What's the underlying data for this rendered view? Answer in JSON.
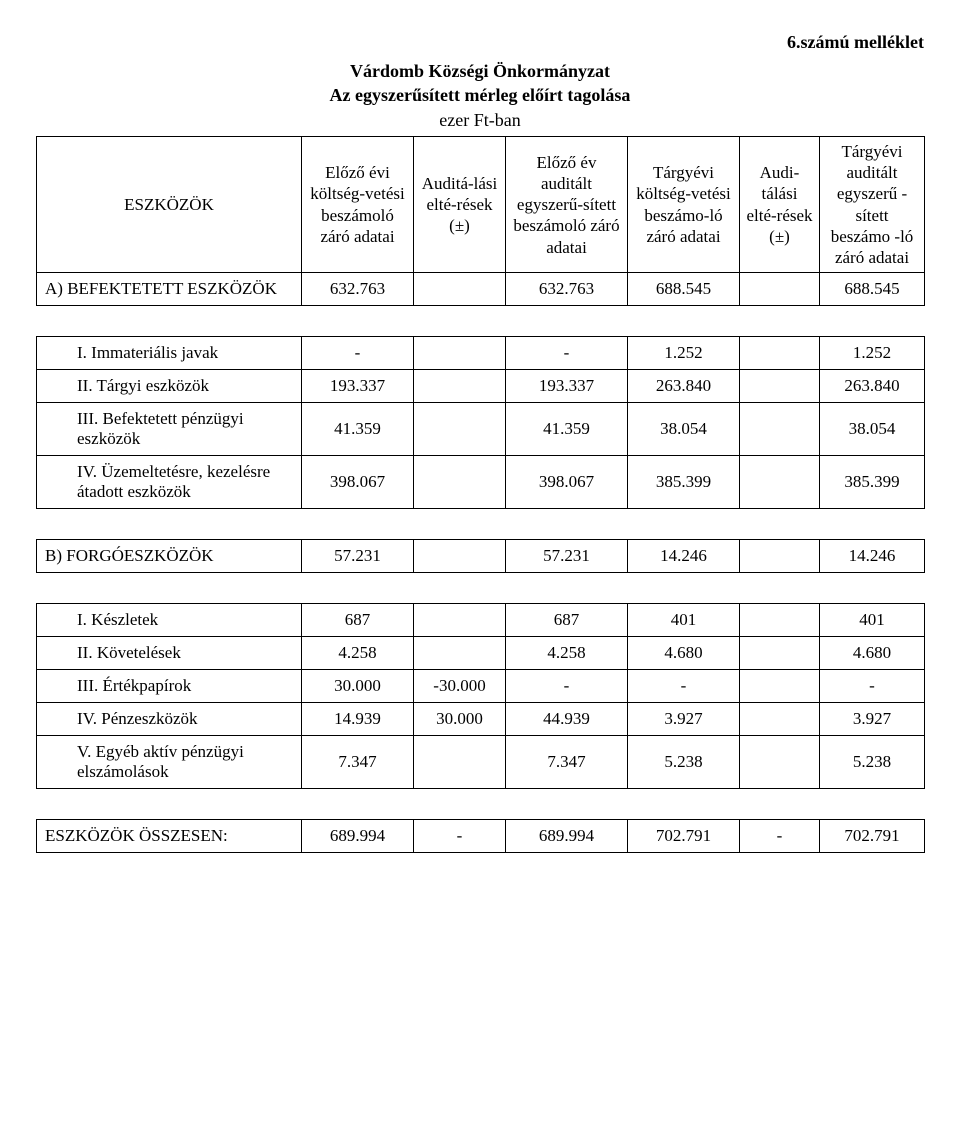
{
  "page": {
    "attachment_label": "6.számú melléklet",
    "heading_line1": "Várdomb Községi Önkormányzat",
    "heading_line2": "Az egyszerűsített mérleg előírt tagolása",
    "heading_line3": "ezer Ft-ban"
  },
  "colors": {
    "text": "#000000",
    "background": "#ffffff",
    "border": "#000000"
  },
  "typography": {
    "font_family": "Book Antiqua / Palatino",
    "body_fontsize_pt": 12,
    "heading_fontsize_pt": 13,
    "heading_weight": "bold"
  },
  "table": {
    "type": "table",
    "header": {
      "rowhead": "ESZKÖZÖK",
      "cols": [
        "Előző évi költség-vetési beszámoló záró adatai",
        "Auditá-lási elté-rések (±)",
        "Előző év auditált egyszerű-sített beszámoló záró adatai",
        "Tárgyévi költség-vetési beszámo-ló záró adatai",
        "Audi-tálási elté-rések (±)",
        "Tárgyévi auditált egyszerű -sített beszámo -ló záró adatai"
      ]
    },
    "rows": [
      {
        "label": "A) BEFEKTETETT ESZKÖZÖK",
        "indent": 0,
        "cells": [
          "632.763",
          "",
          "632.763",
          "688.545",
          "",
          "688.545"
        ]
      },
      {
        "spacer": true
      },
      {
        "label": "I. Immateriális javak",
        "indent": 1,
        "cells": [
          "-",
          "",
          "-",
          "1.252",
          "",
          "1.252"
        ]
      },
      {
        "label": "II. Tárgyi eszközök",
        "indent": 1,
        "cells": [
          "193.337",
          "",
          "193.337",
          "263.840",
          "",
          "263.840"
        ]
      },
      {
        "label": "III. Befektetett pénzügyi eszközök",
        "indent": 1,
        "cells": [
          "41.359",
          "",
          "41.359",
          "38.054",
          "",
          "38.054"
        ]
      },
      {
        "label": "IV. Üzemeltetésre, kezelésre átadott  eszközök",
        "indent": 1,
        "cells": [
          "398.067",
          "",
          "398.067",
          "385.399",
          "",
          "385.399"
        ]
      },
      {
        "spacer": true
      },
      {
        "label": "B) FORGÓESZKÖZÖK",
        "indent": 0,
        "cells": [
          "57.231",
          "",
          "57.231",
          "14.246",
          "",
          "14.246"
        ]
      },
      {
        "spacer": true
      },
      {
        "label": "I. Készletek",
        "indent": 1,
        "cells": [
          "687",
          "",
          "687",
          "401",
          "",
          "401"
        ]
      },
      {
        "label": "II. Követelések",
        "indent": 1,
        "cells": [
          "4.258",
          "",
          "4.258",
          "4.680",
          "",
          "4.680"
        ]
      },
      {
        "label": "III. Értékpapírok",
        "indent": 1,
        "cells": [
          "30.000",
          "-30.000",
          "-",
          "-",
          "",
          "-"
        ]
      },
      {
        "label": "IV. Pénzeszközök",
        "indent": 1,
        "cells": [
          "14.939",
          "30.000",
          "44.939",
          "3.927",
          "",
          "3.927"
        ]
      },
      {
        "label": "V. Egyéb aktív pénzügyi elszámolások",
        "indent": 1,
        "cells": [
          "7.347",
          "",
          "7.347",
          "5.238",
          "",
          "5.238"
        ]
      },
      {
        "spacer": true
      },
      {
        "label": "ESZKÖZÖK ÖSSZESEN:",
        "indent": 0,
        "cells": [
          "689.994",
          "-",
          "689.994",
          "702.791",
          "-",
          "702.791"
        ]
      }
    ]
  }
}
